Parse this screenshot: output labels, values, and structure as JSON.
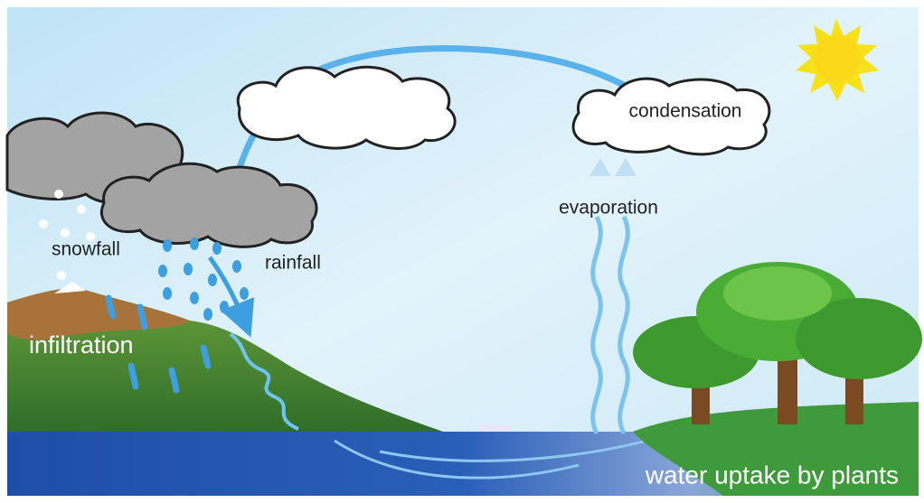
{
  "labels": [
    "condensation",
    "evaporation",
    "snowfall",
    "rainfall",
    "infiltration",
    "water uptake by plants"
  ]
}
